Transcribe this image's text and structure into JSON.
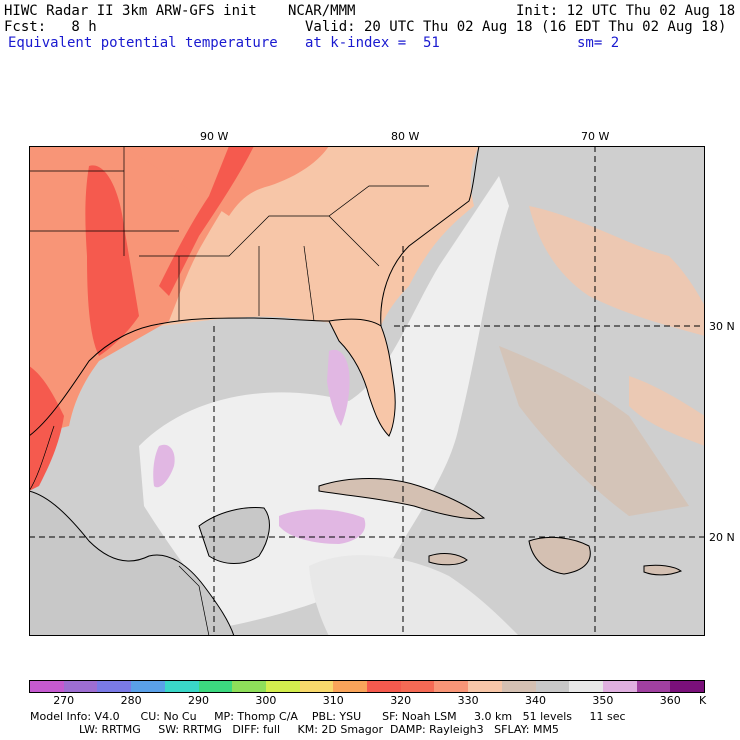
{
  "header": {
    "line1_left": "HIWC Radar II 3km ARW-GFS init",
    "line1_mid": "NCAR/MMM",
    "line1_right": "Init: 12 UTC Thu 02 Aug 18",
    "line2_left": "Fcst:   8 h",
    "line2_right": "Valid: 20 UTC Thu 02 Aug 18 (16 EDT Thu 02 Aug 18)",
    "line3_left": "Equivalent potential temperature",
    "line3_mid": "at k-index =  51",
    "line3_right": "sm= 2"
  },
  "map": {
    "lon_labels": [
      "90 W",
      "80 W",
      "70 W"
    ],
    "lat_labels": [
      "30 N",
      "20 N"
    ],
    "colors": {
      "land_hot": "#f55a4e",
      "land_warm": "#f89577",
      "land_mild": "#f7c6a8",
      "ocean_gray": "#cfcfcf",
      "ocean_light": "#efefef",
      "purple_patch": "#e1b7e3",
      "coast": "#000000",
      "grid": "#000000"
    }
  },
  "colorbar": {
    "unit": "K",
    "labels": [
      "270",
      "280",
      "290",
      "300",
      "310",
      "320",
      "330",
      "340",
      "350",
      "360"
    ],
    "colors": [
      "#c55ad0",
      "#9e6ed2",
      "#7a7ae6",
      "#5aa0e8",
      "#3ad7c8",
      "#3cd87f",
      "#8ede5a",
      "#d3ed4e",
      "#f8d96c",
      "#f9a45a",
      "#f55a4e",
      "#f56a55",
      "#f89577",
      "#f7c6a8",
      "#d4c0b2",
      "#c8c8c8",
      "#e8e8e8",
      "#e0b0e0",
      "#a040a0",
      "#7a107a"
    ]
  },
  "footer": {
    "line1": "Model Info: V4.0      CU: No Cu     MP: Thomp C/A    PBL: YSU      SF: Noah LSM     3.0 km   51 levels     11 sec",
    "line2": "              LW: RRTMG     SW: RRTMG   DIFF: full     KM: 2D Smagor  DAMP: Rayleigh3   SFLAY: MM5"
  }
}
